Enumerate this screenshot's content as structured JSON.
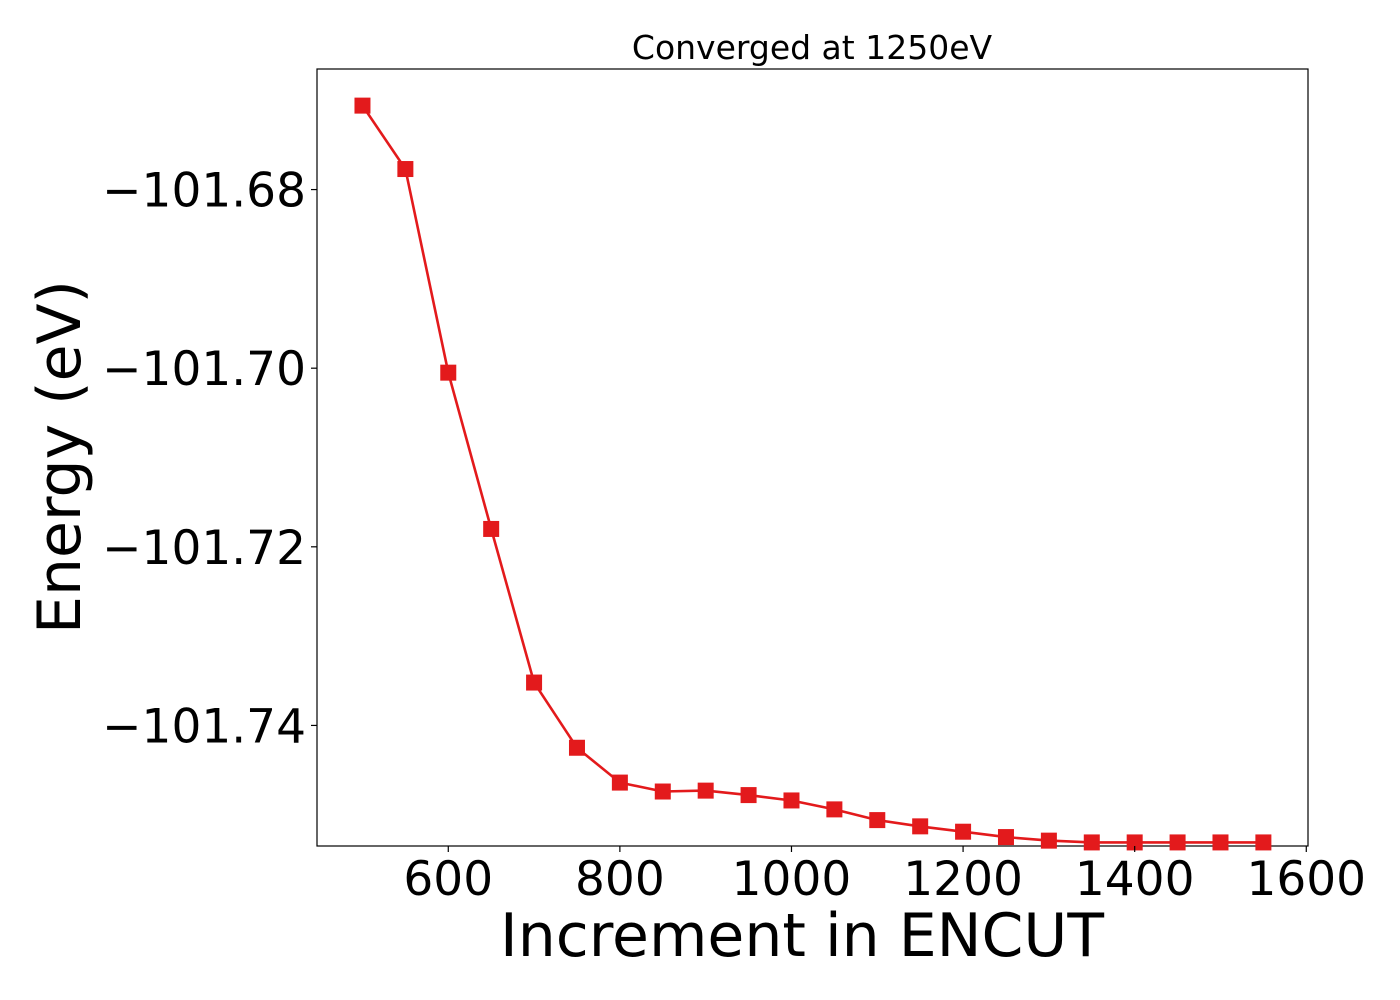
{
  "chart_data": {
    "type": "line",
    "title": "Converged at 1250eV",
    "xlabel": "Increment in ENCUT",
    "ylabel": "Energy (eV)",
    "xlim": [
      447,
      1602
    ],
    "ylim": [
      -101.7535,
      -101.6665
    ],
    "xticks": [
      600,
      800,
      1000,
      1200,
      1400,
      1600
    ],
    "yticks": [
      -101.68,
      -101.7,
      -101.72,
      -101.74
    ],
    "grid": false,
    "legend": "none",
    "marker": "square",
    "color": "#e31a1c",
    "series": [
      {
        "x": [
          500,
          550,
          600,
          650,
          700,
          750,
          800,
          850,
          900,
          950,
          1000,
          1050,
          1100,
          1150,
          1200,
          1250,
          1300,
          1350,
          1400,
          1450,
          1500,
          1550
        ],
        "y": [
          -101.6706,
          -101.6777,
          -101.7005,
          -101.718,
          -101.7352,
          -101.7425,
          -101.7464,
          -101.7474,
          -101.7473,
          -101.7478,
          -101.7484,
          -101.7494,
          -101.7506,
          -101.7513,
          -101.7519,
          -101.7525,
          -101.7529,
          -101.7531,
          -101.7531,
          -101.7531,
          -101.7531,
          -101.7531
        ]
      }
    ]
  }
}
